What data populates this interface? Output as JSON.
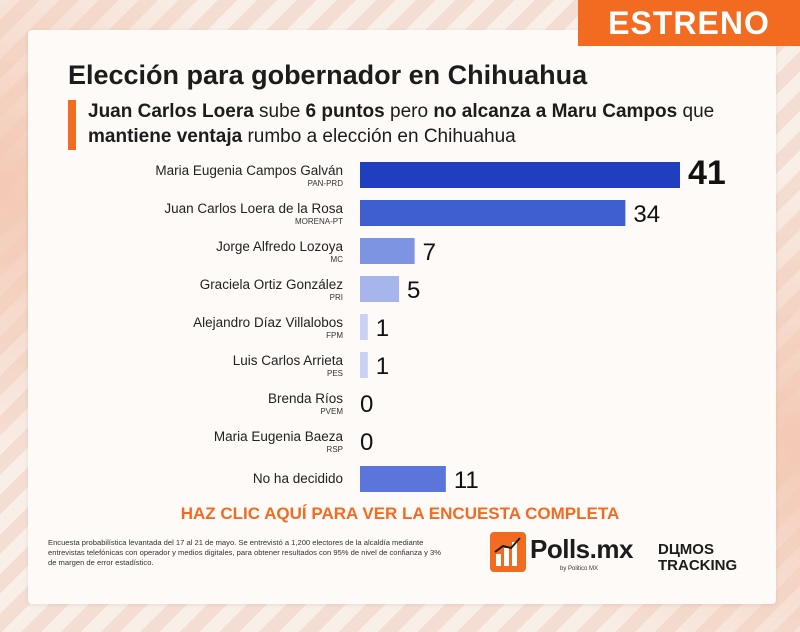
{
  "badge": "ESTRENO",
  "title": "Elección para gobernador en Chihuahua",
  "subtitle": {
    "p1": "Juan Carlos Loera",
    "p2": " sube ",
    "p3": "6 puntos",
    "p4": " pero ",
    "p5": "no alcanza a Maru Campos",
    "p6": " que ",
    "p7": "mantiene ventaja",
    "p8": " rumbo a elección en Chihuahua"
  },
  "chart_data": {
    "type": "bar",
    "orientation": "horizontal",
    "categories": [
      "Maria Eugenia Campos Galván",
      "Juan Carlos Loera de la Rosa",
      "Jorge Alfredo Lozoya",
      "Graciela Ortiz González",
      "Alejandro Díaz Villalobos",
      "Luis Carlos Arrieta",
      "Brenda Ríos",
      "Maria Eugenia Baeza",
      "No ha decidido"
    ],
    "parties": [
      "PAN-PRD",
      "MORENA-PT",
      "MC",
      "PRI",
      "FPM",
      "PES",
      "PVEM",
      "RSP",
      ""
    ],
    "values": [
      41,
      34,
      7,
      5,
      1,
      1,
      0,
      0,
      11
    ],
    "colors": [
      "#1f3fbf",
      "#3f5fd0",
      "#7d94e2",
      "#a6b5ec",
      "#c9d2f3",
      "#c9d2f3",
      "#dfe4f8",
      "#dfe4f8",
      "#5a76db"
    ]
  },
  "cta": "HAZ CLIC AQUÍ PARA VER LA ENCUESTA COMPLETA",
  "footnote": "Encuesta probabilística levantada del 17 al 21 de mayo. Se entrevistó a 1,200 electores de la alcaldía mediante entrevistas telefónicas con operador y medios digitales, para obtener resultados con 95% de nivel de confianza y 3% de margen de error estadístico.",
  "logos": {
    "polls_name": "Polls.mx",
    "polls_sub": "by Politico MX",
    "dumos_line1": "DЦMOS",
    "dumos_line2": "TRACKING"
  }
}
